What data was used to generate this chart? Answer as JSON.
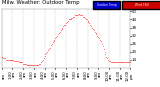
{
  "title": "Milw. Weather: Outdoor Temp",
  "dot_color": "#ff0000",
  "dot_size": 0.8,
  "background_color": "#ffffff",
  "grid_color": "#888888",
  "title_fontsize": 3.8,
  "tick_fontsize": 2.8,
  "ylim": [
    8,
    52
  ],
  "ytick_values": [
    14,
    20,
    26,
    32,
    38,
    44,
    50
  ],
  "ytick_labels": [
    "14",
    "20",
    "26",
    "32",
    "38",
    "44",
    "50"
  ],
  "legend_blue_color": "#0000cc",
  "legend_red_color": "#cc0000",
  "legend_blue_label": "Outdoor Temp",
  "legend_red_label": "Wind Chill",
  "temp_data": [
    16,
    16,
    15,
    15,
    15,
    14,
    14,
    14,
    14,
    14,
    14,
    14,
    14,
    14,
    13,
    13,
    13,
    13,
    13,
    12,
    12,
    12,
    12,
    12,
    11,
    11,
    11,
    11,
    10,
    10,
    10,
    10,
    10,
    10,
    10,
    10,
    10,
    10,
    10,
    10,
    10,
    10,
    11,
    11,
    12,
    13,
    14,
    15,
    17,
    18,
    19,
    20,
    21,
    22,
    23,
    25,
    26,
    27,
    28,
    29,
    30,
    31,
    32,
    33,
    34,
    35,
    36,
    37,
    38,
    39,
    40,
    40,
    41,
    42,
    43,
    44,
    44,
    44,
    45,
    45,
    46,
    46,
    47,
    47,
    47,
    47,
    48,
    48,
    47,
    47,
    47,
    46,
    46,
    45,
    44,
    44,
    43,
    42,
    41,
    40,
    39,
    38,
    37,
    36,
    35,
    34,
    33,
    32,
    31,
    30,
    29,
    28,
    26,
    24,
    22,
    20,
    18,
    16,
    15,
    14,
    13,
    13,
    12,
    12,
    12,
    12,
    12,
    12,
    12,
    12,
    12,
    12,
    12,
    12,
    12,
    12,
    12,
    12,
    12,
    12,
    12,
    12,
    12,
    12
  ],
  "xtick_positions": [
    0,
    12,
    24,
    36,
    48,
    60,
    72,
    84,
    96,
    108,
    120,
    132,
    143
  ],
  "xtick_labels": [
    "12:00\nam",
    "1:00\nam",
    "2:00\nam",
    "3:00\nam",
    "4:00\nam",
    "5:00\nam",
    "6:00\nam",
    "7:00\nam",
    "8:00\nam",
    "9:00\nam",
    "10:00\nam",
    "11:00\nam",
    "12:00\npm"
  ],
  "vline_x": 36
}
